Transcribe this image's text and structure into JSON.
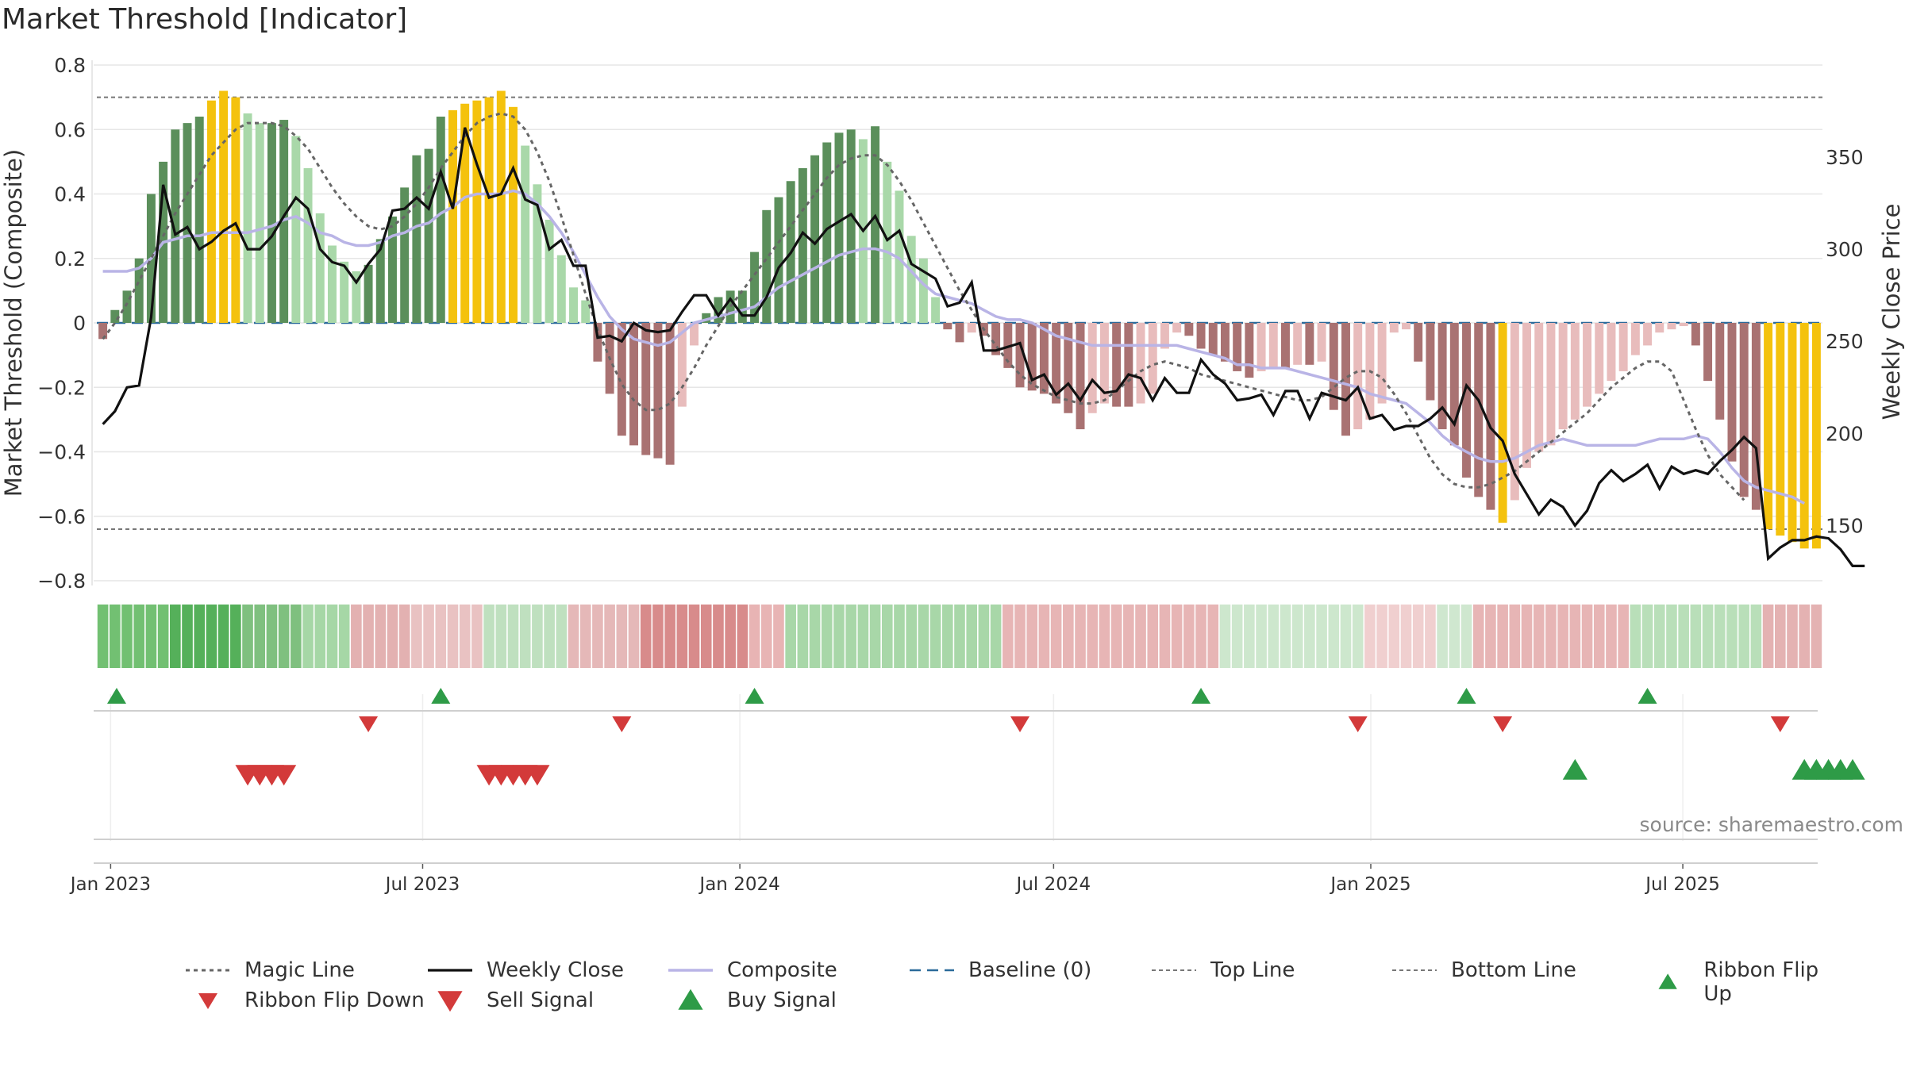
{
  "title": "Market Threshold [Indicator]",
  "source": "source: sharemaestro.com",
  "colors": {
    "green_dark": "#5b8f5b",
    "green_light": "#a9d8a9",
    "red_dark": "#a97272",
    "red_light": "#e8bcbc",
    "gold": "#f4c20d",
    "close": "#111111",
    "composite": "#b9b4e6",
    "magic": "#666666",
    "baseline": "#2b6a9a",
    "buy": "#2e9b47",
    "sell": "#d33a3a"
  },
  "legend": [
    {
      "key": "magic",
      "label": "Magic Line"
    },
    {
      "key": "close",
      "label": "Weekly Close"
    },
    {
      "key": "composite",
      "label": "Composite"
    },
    {
      "key": "baseline",
      "label": "Baseline (0)"
    },
    {
      "key": "top",
      "label": "Top Line"
    },
    {
      "key": "bottom",
      "label": "Bottom Line"
    },
    {
      "key": "flip_up",
      "label": "Ribbon Flip Up"
    },
    {
      "key": "flip_down",
      "label": "Ribbon Flip Down"
    },
    {
      "key": "sell",
      "label": "Sell Signal"
    },
    {
      "key": "buy",
      "label": "Buy Signal"
    }
  ],
  "chart_data": {
    "type": "bar",
    "title": "Market Threshold [Indicator]",
    "ylabel": "Market Threshold (Composite)",
    "y2label": "Weekly Close Price",
    "ylim": [
      -0.8,
      0.8
    ],
    "y_ticks": [
      "0.8",
      "0.6",
      "0.4",
      "0.2",
      "0",
      "−0.2",
      "−0.4",
      "−0.6",
      "−0.8"
    ],
    "y2lim": [
      120,
      400
    ],
    "y2_ticks": [
      "350",
      "300",
      "250",
      "200",
      "150"
    ],
    "x_ticks": [
      "Jan 2023",
      "Jul 2023",
      "Jan 2024",
      "Jul 2024",
      "Jan 2025",
      "Jul 2025"
    ],
    "top_line": 0.7,
    "bottom_line": -0.64,
    "baseline": 0,
    "composite_bars": [
      -0.05,
      0.04,
      0.1,
      0.2,
      0.4,
      0.5,
      0.6,
      0.62,
      0.64,
      0.69,
      0.72,
      0.7,
      0.65,
      0.62,
      0.62,
      0.63,
      0.58,
      0.48,
      0.34,
      0.24,
      0.19,
      0.16,
      0.18,
      0.26,
      0.33,
      0.42,
      0.52,
      0.54,
      0.64,
      0.66,
      0.68,
      0.69,
      0.7,
      0.72,
      0.67,
      0.55,
      0.43,
      0.32,
      0.21,
      0.11,
      0.07,
      -0.12,
      -0.22,
      -0.35,
      -0.38,
      -0.41,
      -0.42,
      -0.44,
      -0.26,
      -0.07,
      0.03,
      0.08,
      0.1,
      0.1,
      0.22,
      0.35,
      0.39,
      0.44,
      0.48,
      0.52,
      0.56,
      0.59,
      0.6,
      0.57,
      0.61,
      0.5,
      0.41,
      0.27,
      0.2,
      0.08,
      -0.02,
      -0.06,
      -0.03,
      -0.04,
      -0.1,
      -0.14,
      -0.2,
      -0.21,
      -0.22,
      -0.25,
      -0.28,
      -0.33,
      -0.28,
      -0.25,
      -0.26,
      -0.26,
      -0.25,
      -0.22,
      -0.08,
      -0.03,
      -0.04,
      -0.08,
      -0.1,
      -0.12,
      -0.15,
      -0.17,
      -0.15,
      -0.14,
      -0.14,
      -0.13,
      -0.13,
      -0.12,
      -0.27,
      -0.35,
      -0.33,
      -0.3,
      -0.25,
      -0.03,
      -0.02,
      -0.12,
      -0.24,
      -0.33,
      -0.38,
      -0.48,
      -0.54,
      -0.58,
      -0.62,
      -0.55,
      -0.45,
      -0.4,
      -0.38,
      -0.33,
      -0.3,
      -0.26,
      -0.22,
      -0.18,
      -0.15,
      -0.1,
      -0.07,
      -0.03,
      -0.02,
      -0.01,
      -0.07,
      -0.18,
      -0.3,
      -0.43,
      -0.54,
      -0.58,
      -0.64,
      -0.66,
      -0.68,
      -0.7,
      -0.7
    ],
    "weekly_close": [
      205,
      212,
      225,
      226,
      263,
      335,
      308,
      312,
      300,
      304,
      310,
      314,
      300,
      300,
      307,
      318,
      328,
      322,
      300,
      293,
      291,
      282,
      292,
      300,
      321,
      322,
      328,
      322,
      342,
      322,
      366,
      346,
      328,
      330,
      344,
      327,
      324,
      300,
      305,
      291,
      291,
      252,
      253,
      250,
      260,
      256,
      255,
      256,
      266,
      275,
      275,
      264,
      273,
      264,
      264,
      274,
      290,
      298,
      309,
      303,
      311,
      315,
      319,
      310,
      318,
      305,
      310,
      292,
      288,
      284,
      269,
      271,
      282,
      245,
      245,
      247,
      249,
      229,
      232,
      221,
      227,
      218,
      229,
      222,
      223,
      232,
      230,
      218,
      230,
      222,
      222,
      240,
      232,
      227,
      218,
      219,
      221,
      210,
      223,
      223,
      208,
      222,
      220,
      218,
      225,
      208,
      210,
      202,
      204,
      204,
      208,
      214,
      205,
      226,
      218,
      203,
      196,
      178,
      167,
      156,
      164,
      160,
      150,
      158,
      173,
      180,
      174,
      178,
      183,
      170,
      182,
      178,
      180,
      178,
      185,
      191,
      198,
      192,
      132,
      138,
      142,
      142,
      144,
      143,
      137,
      128,
      128
    ],
    "composite_line": [
      0.16,
      0.16,
      0.16,
      0.17,
      0.2,
      0.25,
      0.26,
      0.27,
      0.27,
      0.28,
      0.28,
      0.28,
      0.28,
      0.29,
      0.3,
      0.32,
      0.33,
      0.31,
      0.28,
      0.27,
      0.25,
      0.24,
      0.24,
      0.25,
      0.27,
      0.28,
      0.3,
      0.31,
      0.34,
      0.36,
      0.39,
      0.4,
      0.4,
      0.4,
      0.41,
      0.4,
      0.37,
      0.33,
      0.28,
      0.22,
      0.15,
      0.08,
      0.02,
      -0.02,
      -0.05,
      -0.06,
      -0.07,
      -0.06,
      -0.03,
      0.0,
      0.01,
      0.02,
      0.03,
      0.04,
      0.05,
      0.08,
      0.11,
      0.13,
      0.15,
      0.17,
      0.19,
      0.21,
      0.22,
      0.23,
      0.23,
      0.22,
      0.2,
      0.16,
      0.12,
      0.09,
      0.08,
      0.07,
      0.06,
      0.04,
      0.02,
      0.01,
      0.01,
      0.0,
      -0.02,
      -0.04,
      -0.05,
      -0.06,
      -0.07,
      -0.07,
      -0.07,
      -0.07,
      -0.07,
      -0.07,
      -0.07,
      -0.07,
      -0.08,
      -0.09,
      -0.1,
      -0.11,
      -0.13,
      -0.13,
      -0.14,
      -0.14,
      -0.14,
      -0.15,
      -0.16,
      -0.17,
      -0.18,
      -0.19,
      -0.2,
      -0.22,
      -0.23,
      -0.24,
      -0.25,
      -0.28,
      -0.31,
      -0.35,
      -0.38,
      -0.4,
      -0.42,
      -0.43,
      -0.43,
      -0.42,
      -0.4,
      -0.38,
      -0.37,
      -0.36,
      -0.37,
      -0.38,
      -0.38,
      -0.38,
      -0.38,
      -0.38,
      -0.37,
      -0.36,
      -0.36,
      -0.36,
      -0.35,
      -0.36,
      -0.4,
      -0.45,
      -0.49,
      -0.51,
      -0.52,
      -0.53,
      -0.54,
      -0.56
    ],
    "magic_line": [
      -0.05,
      0.0,
      0.06,
      0.13,
      0.2,
      0.27,
      0.34,
      0.4,
      0.46,
      0.52,
      0.56,
      0.6,
      0.62,
      0.62,
      0.62,
      0.61,
      0.58,
      0.54,
      0.48,
      0.42,
      0.37,
      0.33,
      0.3,
      0.29,
      0.3,
      0.33,
      0.37,
      0.42,
      0.48,
      0.53,
      0.58,
      0.62,
      0.64,
      0.65,
      0.64,
      0.6,
      0.53,
      0.44,
      0.33,
      0.21,
      0.09,
      -0.02,
      -0.11,
      -0.19,
      -0.24,
      -0.27,
      -0.27,
      -0.25,
      -0.2,
      -0.14,
      -0.07,
      -0.01,
      0.05,
      0.1,
      0.15,
      0.2,
      0.25,
      0.3,
      0.35,
      0.4,
      0.45,
      0.49,
      0.51,
      0.52,
      0.52,
      0.49,
      0.44,
      0.38,
      0.31,
      0.24,
      0.17,
      0.1,
      0.04,
      -0.02,
      -0.07,
      -0.12,
      -0.16,
      -0.19,
      -0.21,
      -0.23,
      -0.24,
      -0.25,
      -0.25,
      -0.24,
      -0.21,
      -0.18,
      -0.15,
      -0.13,
      -0.12,
      -0.13,
      -0.14,
      -0.16,
      -0.17,
      -0.18,
      -0.19,
      -0.2,
      -0.21,
      -0.22,
      -0.23,
      -0.24,
      -0.24,
      -0.23,
      -0.2,
      -0.17,
      -0.15,
      -0.15,
      -0.17,
      -0.22,
      -0.28,
      -0.35,
      -0.42,
      -0.47,
      -0.5,
      -0.51,
      -0.51,
      -0.5,
      -0.48,
      -0.46,
      -0.43,
      -0.4,
      -0.37,
      -0.34,
      -0.31,
      -0.28,
      -0.24,
      -0.2,
      -0.17,
      -0.14,
      -0.12,
      -0.12,
      -0.15,
      -0.24,
      -0.33,
      -0.41,
      -0.47,
      -0.51,
      -0.55
    ],
    "ribbon": [
      {
        "weeks": 6,
        "color": "#72c072"
      },
      {
        "weeks": 6,
        "color": "#55b05a"
      },
      {
        "weeks": 5,
        "color": "#7fc07f"
      },
      {
        "weeks": 4,
        "color": "#a6d7a6"
      },
      {
        "weeks": 5,
        "color": "#e3b1b1"
      },
      {
        "weeks": 6,
        "color": "#e9c2c2"
      },
      {
        "weeks": 7,
        "color": "#bfe0bf"
      },
      {
        "weeks": 6,
        "color": "#e5b8b8"
      },
      {
        "weeks": 9,
        "color": "#d88b8b"
      },
      {
        "weeks": 3,
        "color": "#e8b4b4"
      },
      {
        "weeks": 18,
        "color": "#a8d7a8"
      },
      {
        "weeks": 18,
        "color": "#e7b5b5"
      },
      {
        "weeks": 12,
        "color": "#cde7cd"
      },
      {
        "weeks": 6,
        "color": "#f0cfcf"
      },
      {
        "weeks": 3,
        "color": "#cfe7cf"
      },
      {
        "weeks": 13,
        "color": "#e7b5b5"
      },
      {
        "weeks": 11,
        "color": "#b9dfb9"
      },
      {
        "weeks": 7,
        "color": "#e4b2b2"
      }
    ],
    "ribbon_flip_up": [
      "2023-01-01",
      "2023-07-08",
      "2024-01-06",
      "2024-09-21",
      "2025-02-22",
      "2025-06-07"
    ],
    "ribbon_flip_down": [
      "2023-05-27",
      "2023-10-21",
      "2024-06-08",
      "2024-12-21",
      "2025-03-15",
      "2025-08-23"
    ],
    "sell_signals": [
      "2023-03-18",
      "2023-03-25",
      "2023-04-01",
      "2023-04-08",
      "2023-08-05",
      "2023-08-12",
      "2023-08-19",
      "2023-08-26",
      "2023-09-02"
    ],
    "buy_signals": [
      "2025-04-26",
      "2025-09-06",
      "2025-09-13",
      "2025-09-20",
      "2025-09-27",
      "2025-10-04"
    ]
  }
}
